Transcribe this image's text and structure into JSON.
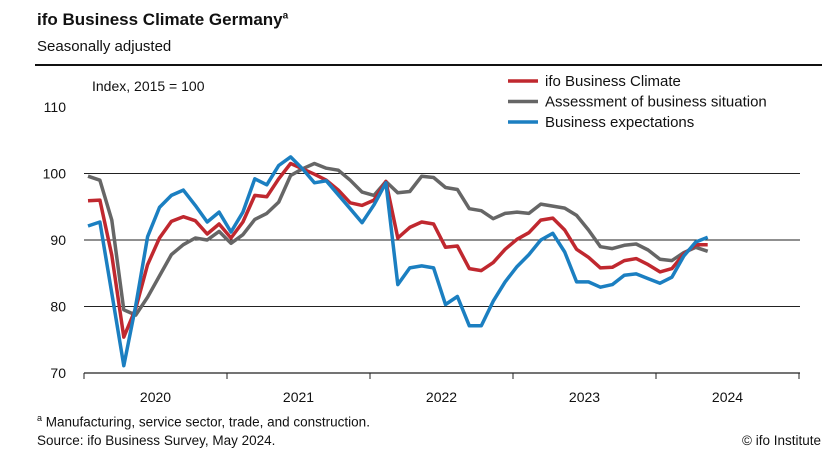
{
  "header": {
    "title": "ifo Business Climate Germany",
    "title_sup": "a",
    "subtitle": "Seasonally adjusted"
  },
  "footer": {
    "footnote_marker": "a",
    "footnote": "Manufacturing, service sector, trade, and construction.",
    "source": "Source: ifo Business Survey, May 2024.",
    "copyright": "© ifo Institute"
  },
  "chart_data": {
    "type": "line",
    "ylabel": "Index, 2015 = 100",
    "ylim": [
      70,
      110
    ],
    "yticks": [
      70,
      80,
      90,
      100,
      110
    ],
    "gridlines": [
      80,
      90,
      100
    ],
    "xlabel": "",
    "x_start": "2020-01",
    "x_end": "2024-05",
    "frequency": "monthly",
    "xticks": [
      "2020",
      "2021",
      "2022",
      "2023",
      "2024"
    ],
    "legend_position": "top-right",
    "series": [
      {
        "name": "ifo Business Climate",
        "color": "#c0282f",
        "values": [
          95.9,
          96.0,
          87.7,
          75.4,
          79.7,
          86.3,
          90.3,
          92.8,
          93.5,
          92.9,
          90.9,
          92.4,
          90.3,
          92.7,
          96.7,
          96.5,
          99.2,
          101.5,
          100.7,
          99.9,
          99.0,
          97.5,
          95.6,
          95.2,
          96.0,
          98.8,
          90.3,
          91.9,
          92.7,
          92.4,
          88.9,
          89.1,
          85.7,
          85.4,
          86.6,
          88.6,
          90.1,
          91.1,
          93.0,
          93.3,
          91.5,
          88.6,
          87.4,
          85.8,
          85.9,
          86.9,
          87.2,
          86.3,
          85.2,
          85.7,
          87.9,
          89.3,
          89.3
        ]
      },
      {
        "name": "Assessment of business situation",
        "color": "#666666",
        "values": [
          99.6,
          99.0,
          93.0,
          79.5,
          78.7,
          81.4,
          84.6,
          87.8,
          89.3,
          90.3,
          90.0,
          91.3,
          89.5,
          90.8,
          93.1,
          94.0,
          95.7,
          99.7,
          100.7,
          101.5,
          100.8,
          100.5,
          99.0,
          97.2,
          96.7,
          98.8,
          97.1,
          97.3,
          99.6,
          99.4,
          97.9,
          97.6,
          94.7,
          94.4,
          93.2,
          94.0,
          94.2,
          94.0,
          95.4,
          95.1,
          94.8,
          93.7,
          91.5,
          89.0,
          88.7,
          89.2,
          89.4,
          88.5,
          87.1,
          86.9,
          88.1,
          88.9,
          88.3
        ]
      },
      {
        "name": "Business expectations",
        "color": "#1b7fc1",
        "values": [
          92.1,
          92.7,
          82.0,
          71.1,
          80.1,
          90.5,
          94.9,
          96.7,
          97.5,
          95.2,
          92.7,
          94.2,
          91.2,
          94.2,
          99.2,
          98.3,
          101.2,
          102.5,
          100.7,
          98.6,
          98.9,
          96.8,
          94.7,
          92.6,
          95.3,
          98.6,
          83.3,
          85.8,
          86.1,
          85.8,
          80.3,
          81.5,
          77.1,
          77.1,
          80.8,
          83.7,
          86.0,
          87.8,
          90.0,
          91.0,
          88.2,
          83.7,
          83.7,
          82.9,
          83.3,
          84.7,
          84.9,
          84.2,
          83.5,
          84.4,
          87.6,
          89.7,
          90.4
        ]
      }
    ]
  }
}
